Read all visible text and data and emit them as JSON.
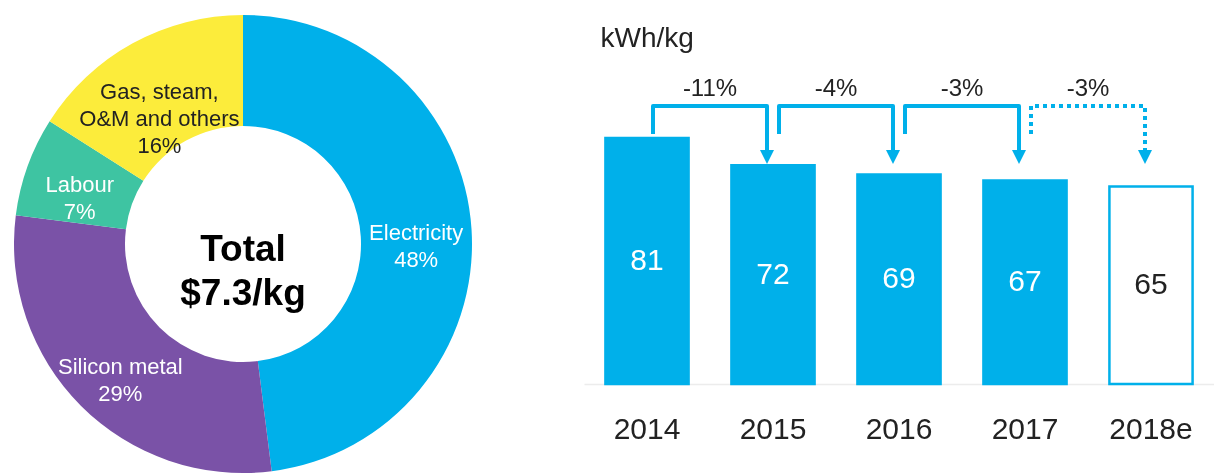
{
  "chart_data": [
    {
      "type": "donut",
      "categories": [
        "Electricity",
        "Silicon metal",
        "Labour",
        "Gas, steam, O&M and others"
      ],
      "values": [
        48,
        29,
        7,
        16
      ],
      "colors": [
        "#00b0ea",
        "#7a52a7",
        "#3ec4a2",
        "#fcec3b"
      ],
      "value_labels": [
        "48%",
        "29%",
        "7%",
        "16%"
      ],
      "annotations": [
        "Total $7.3/kg"
      ]
    },
    {
      "type": "bar",
      "ylabel": "kWh/kg",
      "categories": [
        "2014",
        "2015",
        "2016",
        "2017",
        "2018e"
      ],
      "values": [
        81,
        72,
        69,
        67,
        65
      ],
      "color": "#00b0ea",
      "colors": [
        "#00b0ea",
        "#00b0ea",
        "#00b0ea",
        "#00b0ea",
        "#ffffff"
      ],
      "data_labels": true,
      "tick_labels": "x",
      "annotations": [
        "-11%",
        "-4%",
        "-3%",
        "-3%"
      ]
    }
  ]
}
